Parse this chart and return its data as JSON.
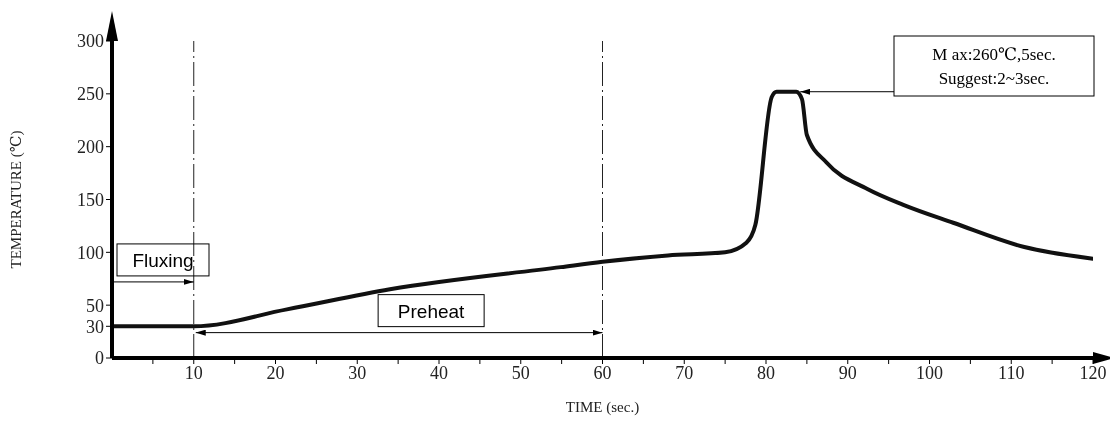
{
  "chart_data": {
    "type": "line",
    "xlabel": "TIME (sec.)",
    "ylabel": "TEMPERATURE (℃)",
    "x": [
      0,
      10,
      21.4,
      34,
      54.9,
      60,
      68,
      75,
      77.6,
      78.7,
      80.7,
      81.3,
      83.7,
      84.4,
      85,
      87.4,
      92.4,
      96.8,
      102.9,
      111.6,
      120
    ],
    "series": [
      {
        "color": "#111111",
        "values": [
          30,
          30,
          46,
          65,
          86,
          91,
          97,
          100,
          109,
          126,
          247,
          252,
          252,
          245,
          211,
          185,
          160,
          145,
          128,
          105,
          94
        ]
      }
    ],
    "xlim": [
      0,
      120
    ],
    "ylim": [
      0,
      300
    ],
    "xticks": [
      {
        "value": 5,
        "label": null
      },
      10,
      {
        "value": 15,
        "label": null
      },
      20,
      {
        "value": 25,
        "label": null
      },
      30,
      {
        "value": 35,
        "label": null
      },
      40,
      {
        "value": 45,
        "label": null
      },
      50,
      {
        "value": 55,
        "label": null
      },
      60,
      {
        "value": 65,
        "label": null
      },
      70,
      {
        "value": 75,
        "label": null
      },
      80,
      {
        "value": 85,
        "label": null
      },
      90,
      {
        "value": 95,
        "label": null
      },
      100,
      {
        "value": 105,
        "label": null
      },
      110,
      {
        "value": 115,
        "label": null
      },
      120
    ],
    "yticks": [
      0,
      30,
      50,
      100,
      150,
      200,
      250,
      300
    ],
    "marker": "none",
    "line_style": "solid",
    "ref_lines": [
      {
        "axis": "x",
        "value": 10,
        "line_style": "dashed",
        "color": "#222222"
      },
      {
        "axis": "x",
        "value": 60,
        "line_style": "dashed",
        "color": "#222222"
      }
    ],
    "annotations": [
      "Fluxing",
      "Preheat",
      "M ax:260℃,5sec.\nSuggest:2~3sec."
    ]
  }
}
